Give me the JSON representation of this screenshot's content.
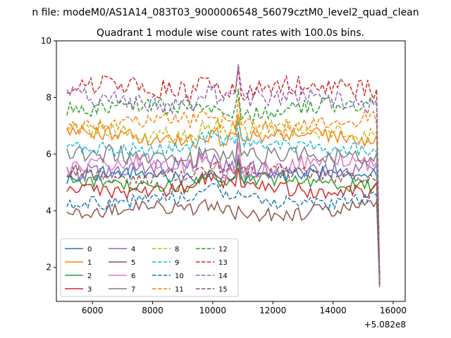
{
  "chart_data": {
    "type": "line",
    "suptitle": "n file: modeM0/AS1A14_083T03_9000006548_56079cztM0_level2_quad_clean",
    "title": "Quadrant 1 module wise count rates with 100.0s bins.",
    "xlabel": "",
    "ylabel": "",
    "x_offset_label": "+5.082e8",
    "xlim": [
      4800,
      16400
    ],
    "ylim": [
      0.8,
      10.0
    ],
    "x_ticks": [
      6000,
      8000,
      10000,
      12000,
      14000,
      16000
    ],
    "x_tick_labels": [
      "6000",
      "8000",
      "10000",
      "12000",
      "14000",
      "16000"
    ],
    "y_ticks": [
      2,
      4,
      6,
      8,
      10
    ],
    "y_tick_labels": [
      "2",
      "4",
      "6",
      "8",
      "10"
    ],
    "x": {
      "start": 5150,
      "step": 100,
      "end": 15550
    },
    "legend_position": "lower-left",
    "legend_columns": 4,
    "series": [
      {
        "name": "0",
        "color": "#1f77b4",
        "style": "solid",
        "level": 5.2,
        "amp": 0.25,
        "spike": 0.5
      },
      {
        "name": "1",
        "color": "#ff7f0e",
        "style": "solid",
        "level": 6.6,
        "amp": 0.25,
        "spike": 0.8
      },
      {
        "name": "2",
        "color": "#2ca02c",
        "style": "solid",
        "level": 5.0,
        "amp": 0.25,
        "spike": 0.6
      },
      {
        "name": "3",
        "color": "#d62728",
        "style": "solid",
        "level": 4.8,
        "amp": 0.25,
        "spike": 0.5
      },
      {
        "name": "4",
        "color": "#9467bd",
        "style": "solid",
        "level": 5.5,
        "amp": 0.3,
        "spike": 0.6
      },
      {
        "name": "5",
        "color": "#8c564b",
        "style": "solid",
        "level": 4.0,
        "amp": 0.25,
        "spike": 0.4
      },
      {
        "name": "6",
        "color": "#e377c2",
        "style": "solid",
        "level": 5.6,
        "amp": 0.3,
        "spike": 0.7
      },
      {
        "name": "7",
        "color": "#7f7f7f",
        "style": "solid",
        "level": 5.9,
        "amp": 0.35,
        "spike": 0.9
      },
      {
        "name": "8",
        "color": "#bcbd22",
        "style": "dashed",
        "level": 6.8,
        "amp": 0.3,
        "spike": 0.8
      },
      {
        "name": "9",
        "color": "#17becf",
        "style": "dashed",
        "level": 6.3,
        "amp": 0.25,
        "spike": 0.7
      },
      {
        "name": "10",
        "color": "#1f77b4",
        "style": "dashed",
        "level": 4.4,
        "amp": 0.25,
        "spike": 0.4
      },
      {
        "name": "11",
        "color": "#ff7f0e",
        "style": "dashed",
        "level": 7.1,
        "amp": 0.3,
        "spike": 0.9
      },
      {
        "name": "12",
        "color": "#2ca02c",
        "style": "dashed",
        "level": 7.6,
        "amp": 0.3,
        "spike": 0.9
      },
      {
        "name": "13",
        "color": "#d62728",
        "style": "dashed",
        "level": 8.3,
        "amp": 0.35,
        "spike": 1.0
      },
      {
        "name": "14",
        "color": "#9467bd",
        "style": "dashed",
        "level": 7.9,
        "amp": 0.35,
        "spike": 1.0
      },
      {
        "name": "15",
        "color": "#8c564b",
        "style": "dashed",
        "level": 5.3,
        "amp": 0.25,
        "spike": 0.6
      }
    ],
    "final_drop_value": 1.4
  }
}
